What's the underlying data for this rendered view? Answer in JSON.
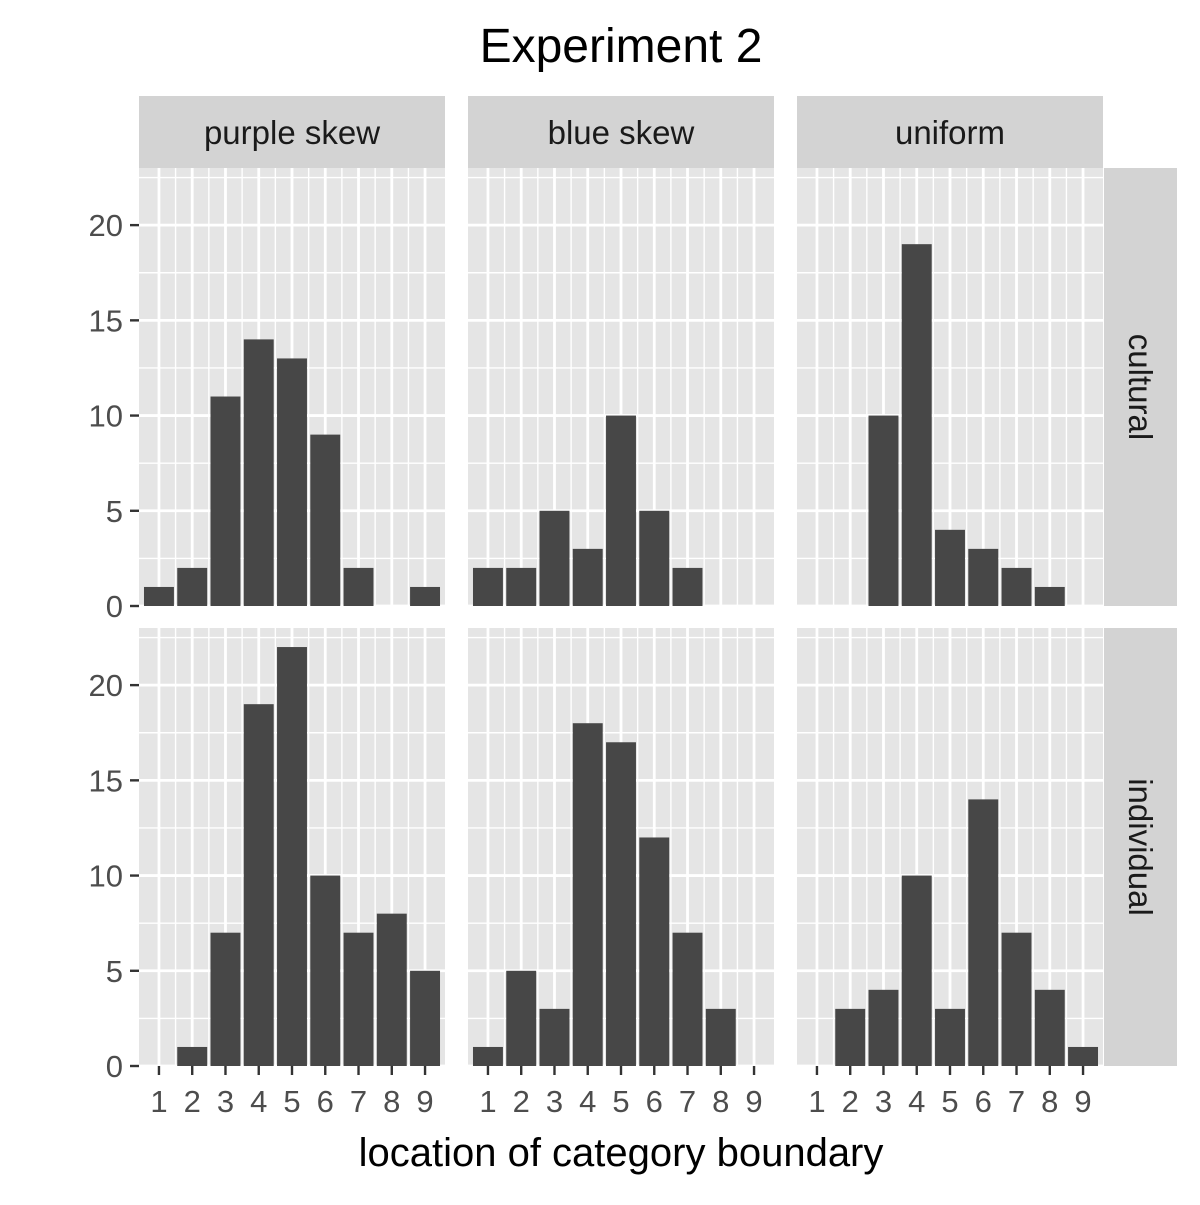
{
  "chart_data": {
    "type": "bar",
    "title": "Experiment 2",
    "xlabel": "location of category boundary",
    "ylabel": "",
    "x": [
      1,
      2,
      3,
      4,
      5,
      6,
      7,
      8,
      9
    ],
    "ylim": [
      0,
      23
    ],
    "yticks": [
      0,
      5,
      10,
      15,
      20
    ],
    "grid": true,
    "legend": "none",
    "column_facets": [
      "purple skew",
      "blue skew",
      "uniform"
    ],
    "row_facets": [
      "cultural",
      "individual"
    ],
    "panels": [
      {
        "row": "cultural",
        "column": "purple skew",
        "values": [
          1,
          2,
          11,
          14,
          13,
          9,
          2,
          0,
          1
        ]
      },
      {
        "row": "cultural",
        "column": "blue skew",
        "values": [
          2,
          2,
          5,
          3,
          10,
          5,
          2,
          0,
          0
        ]
      },
      {
        "row": "cultural",
        "column": "uniform",
        "values": [
          0,
          0,
          10,
          19,
          4,
          3,
          2,
          1,
          0
        ]
      },
      {
        "row": "individual",
        "column": "purple skew",
        "values": [
          0,
          1,
          7,
          19,
          22,
          10,
          7,
          8,
          5
        ]
      },
      {
        "row": "individual",
        "column": "blue skew",
        "values": [
          1,
          5,
          3,
          18,
          17,
          12,
          7,
          3,
          0
        ]
      },
      {
        "row": "individual",
        "column": "uniform",
        "values": [
          0,
          3,
          4,
          10,
          3,
          14,
          7,
          4,
          1
        ]
      }
    ],
    "colors": {
      "bar": "#474747",
      "panel_background": "#e5e5e5",
      "grid_line": "#ffffff",
      "strip_background": "#d3d3d3",
      "text": "#000000",
      "tick_text": "#4d4d4d"
    }
  }
}
